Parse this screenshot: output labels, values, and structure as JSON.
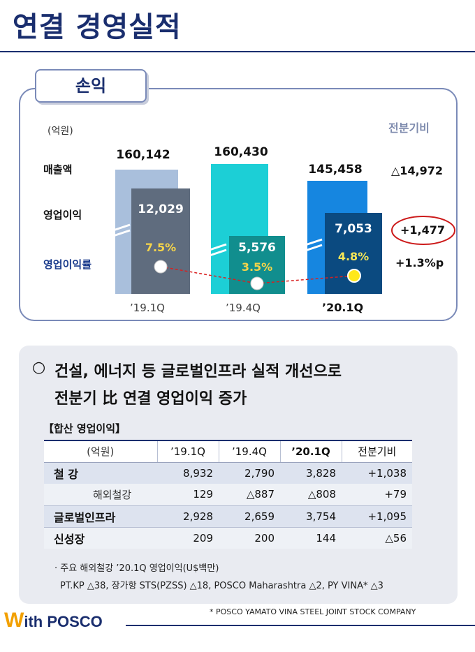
{
  "page_title": "연결 경영실적",
  "panel": {
    "tab_label": "손익",
    "unit": "(억원)",
    "compare_header": "전분기비",
    "row_labels": {
      "sales": "매출액",
      "op_income": "영업이익",
      "op_margin": "영업이익률"
    },
    "quarters": [
      {
        "label": "’19.1Q",
        "sales": "160,142",
        "op_income": "12,029",
        "margin": "7.5%",
        "sales_value": 160142,
        "op_value": 12029,
        "margin_value": 7.5
      },
      {
        "label": "’19.4Q",
        "sales": "160,430",
        "op_income": "5,576",
        "margin": "3.5%",
        "sales_value": 160430,
        "op_value": 5576,
        "margin_value": 3.5
      },
      {
        "label": "’20.1Q",
        "sales": "145,458",
        "op_income": "7,053",
        "margin": "4.8%",
        "sales_value": 145458,
        "op_value": 7053,
        "margin_value": 4.8
      }
    ],
    "compare": {
      "sales": "△14,972",
      "op_income": "+1,477",
      "margin": "+1.3%p"
    },
    "colors": {
      "q1_sales": "#a9bfdc",
      "q1_op": "#5f6c7e",
      "q4_sales": "#1ccfd6",
      "q4_op": "#118e8e",
      "q20_sales": "#1686e0",
      "q20_op": "#0b4a80",
      "highlight_circle": "#cc1a1a",
      "trend_line": "#d92020"
    }
  },
  "summary": {
    "bullet": "○",
    "line1": "건설, 에너지 등 글로벌인프라 실적 개선으로",
    "line2": "전분기 比 연결 영업이익 증가",
    "table_title": "【합산 영업이익】",
    "headers": [
      "(억원)",
      "’19.1Q",
      "’19.4Q",
      "’20.1Q",
      "전분기비"
    ],
    "rows": [
      {
        "label": "철  강",
        "values": [
          "8,932",
          "2,790",
          "3,828",
          "+1,038"
        ]
      },
      {
        "label": "해외철강",
        "values": [
          "129",
          "△887",
          "△808",
          "+79"
        ]
      },
      {
        "label": "글로벌인프라",
        "values": [
          "2,928",
          "2,659",
          "3,754",
          "+1,095"
        ]
      },
      {
        "label": "신성장",
        "values": [
          "209",
          "200",
          "144",
          "△56"
        ]
      }
    ],
    "note1": "· 주요 해외철강 ’20.1Q 영업이익(U$백만)",
    "note2": "PT.KP △38, 장가항 STS(PZSS) △18, POSCO Maharashtra △2, PY VINA* △3"
  },
  "footnote": "* POSCO YAMATO VINA STEEL JOINT STOCK COMPANY",
  "logo": {
    "w": "W",
    "rest": "ith POSCO",
    "color_w": "#f2a000",
    "color_text": "#1a2e6e"
  }
}
